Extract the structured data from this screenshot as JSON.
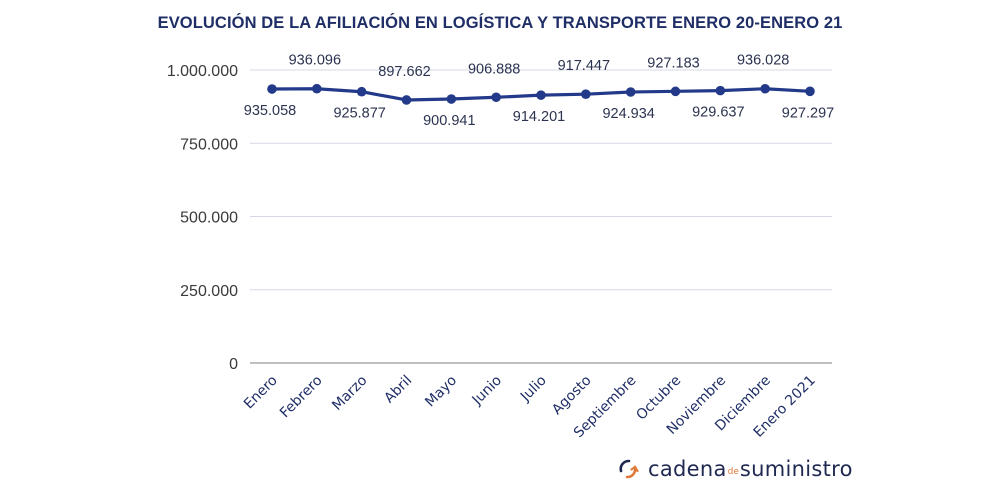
{
  "chart_data": {
    "type": "line",
    "title": "EVOLUCIÓN DE LA AFILIACIÓN EN LOGÍSTICA Y TRANSPORTE ENERO 20-ENERO 21",
    "xlabel": "",
    "ylabel": "",
    "categories": [
      "Enero",
      "Febrero",
      "Marzo",
      "Abril",
      "Mayo",
      "Junio",
      "Julio",
      "Agosto",
      "Septiembre",
      "Octubre",
      "Noviembre",
      "Diciembre",
      "Enero 2021"
    ],
    "series": [
      {
        "name": "Afiliación",
        "values": [
          935058,
          936096,
          925877,
          897662,
          900941,
          906888,
          914201,
          917447,
          924934,
          927183,
          929637,
          936028,
          927297
        ],
        "labels": [
          "935.058",
          "936.096",
          "925.877",
          "897.662",
          "900.941",
          "906.888",
          "914.201",
          "917.447",
          "924.934",
          "927.183",
          "929.637",
          "936.028",
          "927.297"
        ],
        "label_positions": [
          "below",
          "above",
          "below",
          "above",
          "below",
          "above",
          "below",
          "above",
          "below",
          "above",
          "below",
          "above",
          "below"
        ],
        "color": "#233a8a"
      }
    ],
    "ylim": [
      0,
      1000000
    ],
    "yticks": [
      0,
      250000,
      500000,
      750000,
      1000000
    ],
    "ytick_labels": [
      "0",
      "250.000",
      "500.000",
      "750.000",
      "1.000.000"
    ],
    "grid": true,
    "legend": "none"
  },
  "brand": {
    "name_part1": "cadena",
    "name_part2": "de",
    "name_part3": "suministro",
    "icon": "refresh-arrows-icon",
    "colors": {
      "primary": "#1f2850",
      "accent": "#e07a3a"
    }
  }
}
